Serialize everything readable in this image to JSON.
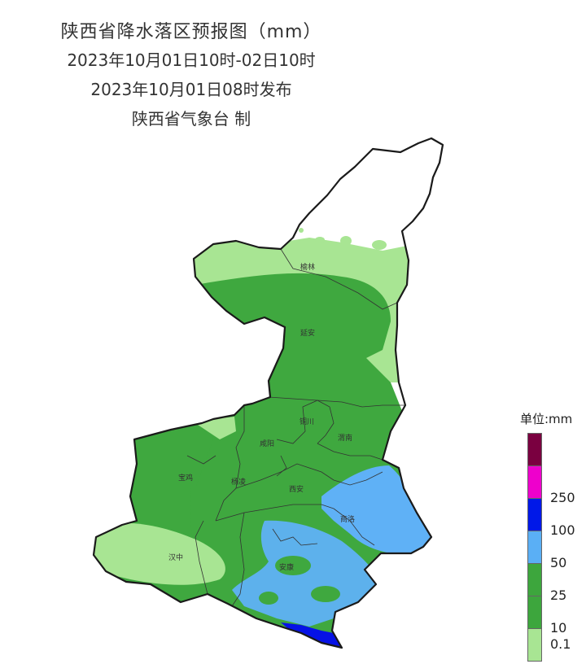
{
  "header": {
    "title": "陕西省降水落区预报图（mm）",
    "period": "2023年10月01日10时-02日10时",
    "issued": "2023年10月01日08时发布",
    "agency": "陕西省气象台 制"
  },
  "cities": {
    "yulin": "榆林",
    "yanan": "延安",
    "tongchuan": "铜川",
    "weinan": "渭南",
    "xianyang": "咸阳",
    "baoji": "宝鸡",
    "yangling": "杨凌",
    "xian": "西安",
    "shangluo": "商洛",
    "hanzhong": "汉中",
    "ankang": "安康"
  },
  "legend": {
    "title": "单位:mm",
    "levels": [
      {
        "label": "",
        "color": "#7a0040"
      },
      {
        "label": "250",
        "color": "#ee00cc"
      },
      {
        "label": "100",
        "color": "#0018e8"
      },
      {
        "label": "50",
        "color": "#5aaff5"
      },
      {
        "label": "25",
        "color": "#3da63d"
      },
      {
        "label": "10",
        "color": "#9de68a"
      },
      {
        "label": "0.1",
        "color": ""
      }
    ]
  },
  "colors": {
    "light_green": "#a8e593",
    "green": "#3fa83f",
    "light_blue": "#5fb1f6",
    "blue": "#0612e6",
    "outline": "#1a1a1a"
  }
}
